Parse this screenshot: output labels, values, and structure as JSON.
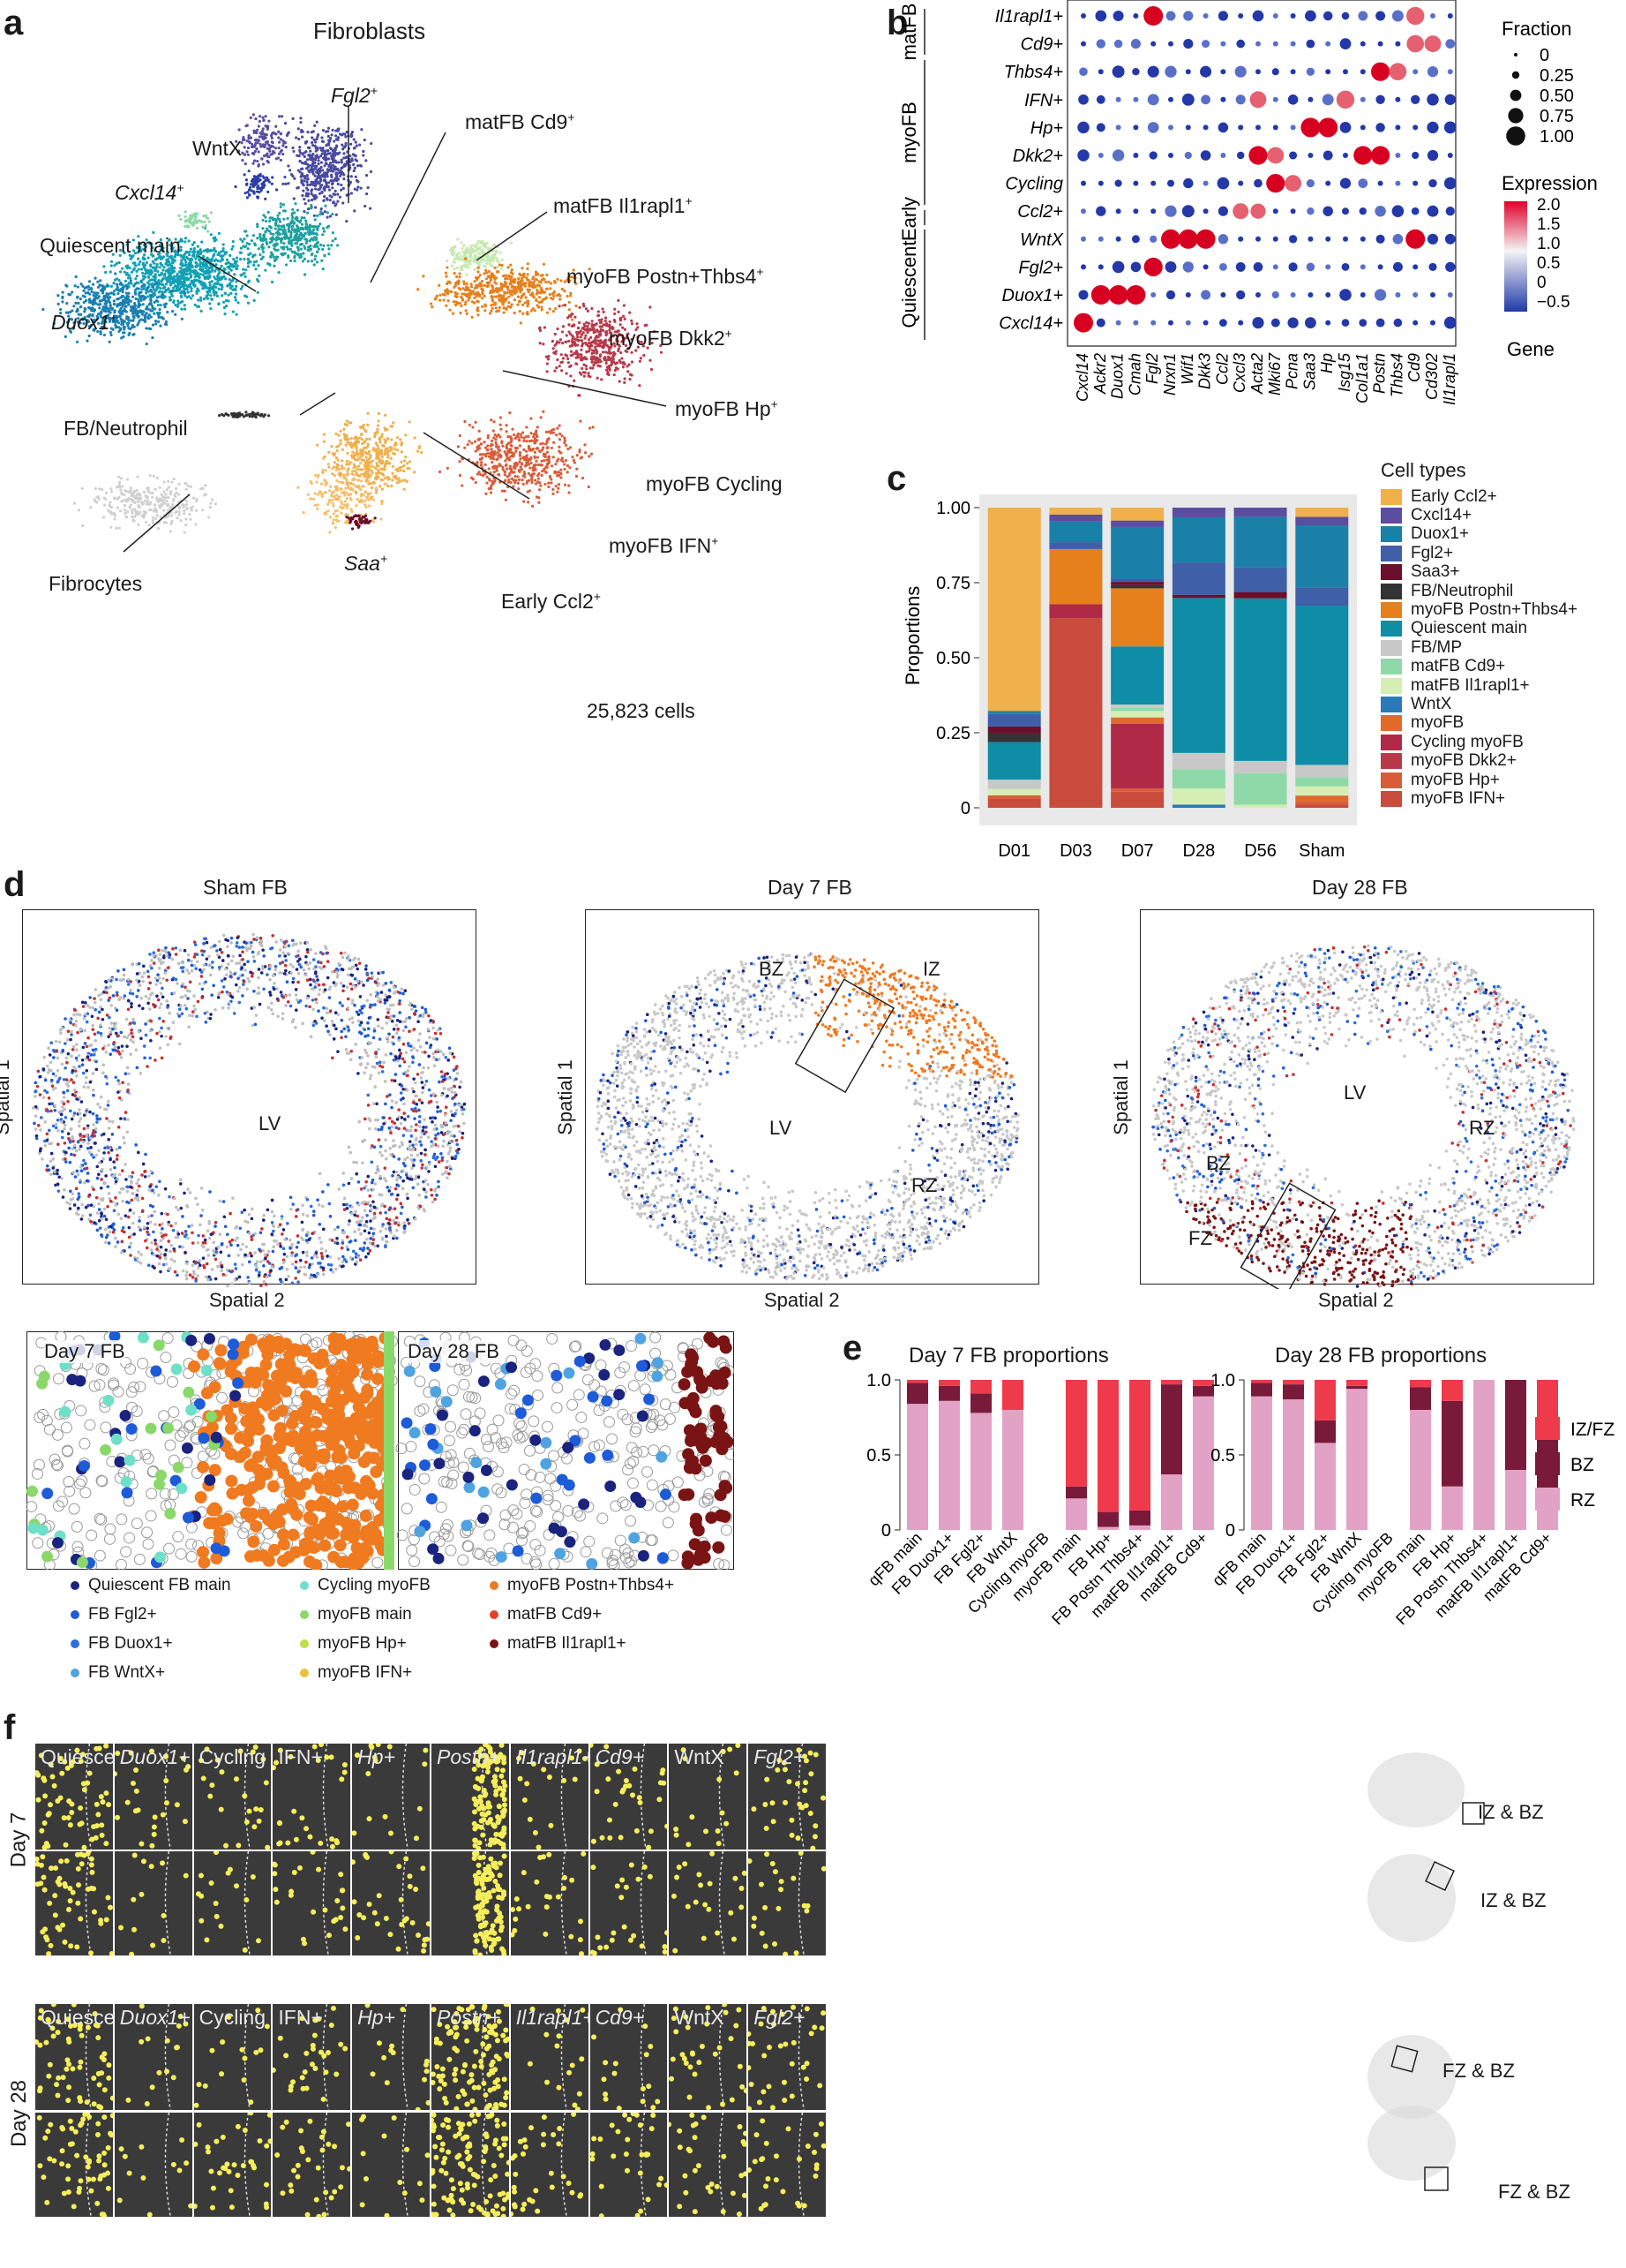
{
  "panel_labels": [
    "a",
    "b",
    "c",
    "d",
    "e",
    "f"
  ],
  "panel_a": {
    "title": "Fibroblasts",
    "cell_count": "25,823 cells",
    "cluster_labels": [
      {
        "key": "fgl2",
        "text": "Fgl2",
        "sup": "+"
      },
      {
        "key": "wntx",
        "text": "WntX",
        "sup": ""
      },
      {
        "key": "cxcl14",
        "text": "Cxcl14",
        "sup": "+"
      },
      {
        "key": "quiescent",
        "text": "Quiescent main",
        "sup": ""
      },
      {
        "key": "duox1",
        "text": "Duox1",
        "sup": "+"
      },
      {
        "key": "matcd9",
        "text": "matFB Cd9",
        "sup": "+"
      },
      {
        "key": "matil1",
        "text": "matFB Il1rapl1",
        "sup": "+"
      },
      {
        "key": "myopostn",
        "text": "myoFB Postn+Thbs4",
        "sup": "+"
      },
      {
        "key": "myodkk2",
        "text": "myoFB Dkk2",
        "sup": "+"
      },
      {
        "key": "myohp",
        "text": "myoFB Hp",
        "sup": "+"
      },
      {
        "key": "myocyc",
        "text": "myoFB Cycling",
        "sup": ""
      },
      {
        "key": "myoifn",
        "text": "myoFB IFN",
        "sup": "+"
      },
      {
        "key": "early",
        "text": "Early Ccl2",
        "sup": "+"
      },
      {
        "key": "saa",
        "text": "Saa",
        "sup": "+"
      },
      {
        "key": "fbneut",
        "text": "FB/Neutrophil",
        "sup": ""
      },
      {
        "key": "fibrocytes",
        "text": "Fibrocytes",
        "sup": ""
      }
    ]
  },
  "panel_b": {
    "group_labels": [
      "matFB",
      "myoFB",
      "Early",
      "Quiescent"
    ],
    "rows": [
      "Il1rapl1+",
      "Cd9+",
      "Thbs4+",
      "IFN+",
      "Hp+",
      "Dkk2+",
      "Cycling",
      "Ccl2+",
      "WntX",
      "Fgl2+",
      "Duox1+",
      "Cxcl14+"
    ],
    "genes": [
      "Cxcl14",
      "Ackr2",
      "Duox1",
      "Cmah",
      "Fgl2",
      "Nrxn1",
      "Wif1",
      "Dkk3",
      "Ccl2",
      "Cxcl3",
      "Acta2",
      "Mki67",
      "Pcna",
      "Saa3",
      "Hp",
      "Isg15",
      "Col1a1",
      "Postn",
      "Thbs4",
      "Cd9",
      "Cd302",
      "Il1rapl1"
    ],
    "fraction_title": "Fraction",
    "fraction_values": [
      "0",
      "0.25",
      "0.50",
      "0.75",
      "1.00"
    ],
    "expression_title": "Expression",
    "expression_ticks": [
      "2.0",
      "1.5",
      "1.0",
      "0.5",
      "0",
      "−0.5"
    ],
    "gene_axis": "Gene"
  },
  "chart_data": [
    {
      "type": "bar",
      "title": "",
      "ylabel": "Proportions",
      "ylim": [
        0,
        1
      ],
      "yticks": [
        "0",
        "0.25",
        "0.50",
        "0.75",
        "1.00"
      ],
      "categories": [
        "D01",
        "D03",
        "D07",
        "D28",
        "D56",
        "Sham"
      ],
      "legend_title": "Cell types",
      "series": [
        {
          "name": "myoFB IFN+",
          "color": "#c84b3c",
          "values": [
            0.03,
            0.55,
            0.05,
            0.0,
            0.0,
            0.01
          ]
        },
        {
          "name": "myoFB Hp+",
          "color": "#d95c3a",
          "values": [
            0.01,
            0.0,
            0.01,
            0.0,
            0.0,
            0.01
          ]
        },
        {
          "name": "myoFB Dkk2+",
          "color": "#b83a4a",
          "values": [
            0.0,
            0.0,
            0.0,
            0.0,
            0.0,
            0.0
          ]
        },
        {
          "name": "Cycling myoFB",
          "color": "#b02a48",
          "values": [
            0.0,
            0.04,
            0.2,
            0.0,
            0.0,
            0.0
          ]
        },
        {
          "name": "myoFB",
          "color": "#e06a2c",
          "values": [
            0.0,
            0.0,
            0.02,
            0.0,
            0.0,
            0.02
          ]
        },
        {
          "name": "WntX",
          "color": "#2a7ab8",
          "values": [
            0.0,
            0.0,
            0.0,
            0.01,
            0.0,
            0.0
          ]
        },
        {
          "name": "matFB Il1rapl1+",
          "color": "#d4eeb4",
          "values": [
            0.02,
            0.0,
            0.02,
            0.05,
            0.01,
            0.03
          ]
        },
        {
          "name": "matFB Cd9+",
          "color": "#8fd9a8",
          "values": [
            0.0,
            0.0,
            0.01,
            0.06,
            0.1,
            0.03
          ]
        },
        {
          "name": "FB/MP",
          "color": "#c8c8c8",
          "values": [
            0.03,
            0.0,
            0.01,
            0.05,
            0.04,
            0.04
          ]
        },
        {
          "name": "Quiescent main",
          "color": "#0f8ca6",
          "values": [
            0.12,
            0.0,
            0.18,
            0.48,
            0.52,
            0.52
          ]
        },
        {
          "name": "myoFB Postn+Thbs4+",
          "color": "#e6801c",
          "values": [
            0.0,
            0.16,
            0.18,
            0.0,
            0.0,
            0.0
          ]
        },
        {
          "name": "FB/Neutrophil",
          "color": "#333333",
          "values": [
            0.03,
            0.0,
            0.01,
            0.0,
            0.0,
            0.0
          ]
        },
        {
          "name": "Saa3+",
          "color": "#6b0f2a",
          "values": [
            0.02,
            0.0,
            0.01,
            0.01,
            0.02,
            0.0
          ]
        },
        {
          "name": "Fgl2+",
          "color": "#3f5fa8",
          "values": [
            0.04,
            0.02,
            0.01,
            0.1,
            0.08,
            0.06
          ]
        },
        {
          "name": "Duox1+",
          "color": "#1a80a8",
          "values": [
            0.01,
            0.06,
            0.16,
            0.14,
            0.16,
            0.2
          ]
        },
        {
          "name": "Cxcl14+",
          "color": "#5b4da0",
          "values": [
            0.0,
            0.02,
            0.02,
            0.03,
            0.03,
            0.03
          ]
        },
        {
          "name": "Early Ccl2+",
          "color": "#f0b04a",
          "values": [
            0.65,
            0.02,
            0.04,
            0.0,
            0.0,
            0.03
          ]
        }
      ],
      "legend_labels": [
        "Early Ccl2+",
        "Cxcl14+",
        "Duox1+",
        "Fgl2+",
        "Saa3+",
        "FB/Neutrophil",
        "myoFB Postn+Thbs4+",
        "Quiescent main",
        "FB/MP",
        "matFB Cd9+",
        "matFB Il1rapl1+",
        "WntX",
        "myoFB",
        "Cycling myoFB",
        "myoFB Dkk2+",
        "myoFB Hp+",
        "myoFB IFN+"
      ]
    },
    {
      "type": "bar",
      "title": "Day 7 FB proportions",
      "ylim": [
        0,
        1
      ],
      "yticks": [
        "0",
        "0.5",
        "1.0"
      ],
      "categories": [
        "qFB main",
        "FB Duox1+",
        "FB Fgl2+",
        "FB WntX",
        "Cycling myoFB",
        "myoFB main",
        "FB Hp+",
        "FB Postn Thbs4+",
        "matFB Il1rapl1+",
        "matFB Cd9+"
      ],
      "series": [
        {
          "name": "RZ",
          "color": "#e2a2c6",
          "values": [
            0.84,
            0.86,
            0.78,
            0.8,
            null,
            0.21,
            0.02,
            0.03,
            0.37,
            0.89
          ]
        },
        {
          "name": "BZ",
          "color": "#7a1a3a",
          "values": [
            0.14,
            0.1,
            0.13,
            0.0,
            null,
            0.08,
            0.1,
            0.1,
            0.6,
            0.07
          ]
        },
        {
          "name": "IZ/FZ",
          "color": "#ee3a4a",
          "values": [
            0.02,
            0.04,
            0.09,
            0.2,
            null,
            0.71,
            0.88,
            0.87,
            0.03,
            0.04
          ]
        }
      ]
    },
    {
      "type": "bar",
      "title": "Day 28 FB proportions",
      "ylim": [
        0,
        1
      ],
      "yticks": [
        "0",
        "0.5",
        "1.0"
      ],
      "categories": [
        "qFB main",
        "FB Duox1+",
        "FB Fgl2+",
        "FB WntX",
        "Cycling myoFB",
        "myoFB main",
        "FB Hp+",
        "FB Postn Thbs4+",
        "matFB Il1rapl1+",
        "matFB Cd9+"
      ],
      "series": [
        {
          "name": "RZ",
          "color": "#e2a2c6",
          "values": [
            0.89,
            0.87,
            0.58,
            0.94,
            null,
            0.8,
            0.29,
            1.0,
            0.4,
            0.25
          ]
        },
        {
          "name": "BZ",
          "color": "#7a1a3a",
          "values": [
            0.09,
            0.1,
            0.15,
            0.02,
            null,
            0.15,
            0.57,
            0.0,
            0.6,
            0.47
          ]
        },
        {
          "name": "IZ/FZ",
          "color": "#ee3a4a",
          "values": [
            0.02,
            0.03,
            0.27,
            0.04,
            null,
            0.05,
            0.14,
            0.0,
            0.0,
            0.28
          ]
        }
      ],
      "legend_labels": [
        "IZ/FZ",
        "BZ",
        "RZ"
      ]
    }
  ],
  "panel_c": {
    "legend_title": "Cell types"
  },
  "panel_d": {
    "titles": [
      "Sham FB",
      "Day 7 FB",
      "Day 28 FB"
    ],
    "y_axis": "Spatial 1",
    "x_axis": "Spatial 2",
    "lv": "LV",
    "zones": {
      "bz": "BZ",
      "iz": "IZ",
      "rz": "RZ",
      "fz": "FZ"
    },
    "zoom_titles": [
      "Day 7 FB",
      "Day 28 FB"
    ],
    "legend": [
      {
        "name": "Quiescent FB main",
        "color": "#1a237e"
      },
      {
        "name": "FB Fgl2+",
        "color": "#1e5bd8"
      },
      {
        "name": "FB Duox1+",
        "color": "#2a6fdb"
      },
      {
        "name": "FB WntX+",
        "color": "#4fa3e0"
      },
      {
        "name": "Cycling myoFB",
        "color": "#6fe0c8"
      },
      {
        "name": "myoFB main",
        "color": "#8ad86a"
      },
      {
        "name": "myoFB Hp+",
        "color": "#bde04a"
      },
      {
        "name": "myoFB IFN+",
        "color": "#e8c23a"
      },
      {
        "name": "myoFB Postn+Thbs4+",
        "color": "#f07a20"
      },
      {
        "name": "matFB Cd9+",
        "color": "#e4402a"
      },
      {
        "name": "matFB Il1rapl1+",
        "color": "#7a1414"
      }
    ]
  },
  "panel_f": {
    "tile_labels": [
      "Quiescent",
      "Duox1+",
      "Cycling",
      "IFN+",
      "Hp+",
      "Postn+",
      "Il1rapl1+",
      "Cd9+",
      "WntX",
      "Fgl2+"
    ],
    "row_labels": [
      "Day 7",
      "Day 28"
    ],
    "inset_labels": [
      "IZ & BZ",
      "IZ & BZ",
      "FZ & BZ",
      "FZ & BZ"
    ],
    "colors": {
      "tile_bg": "#3a3a3a",
      "points": "#f5ee5a"
    }
  }
}
